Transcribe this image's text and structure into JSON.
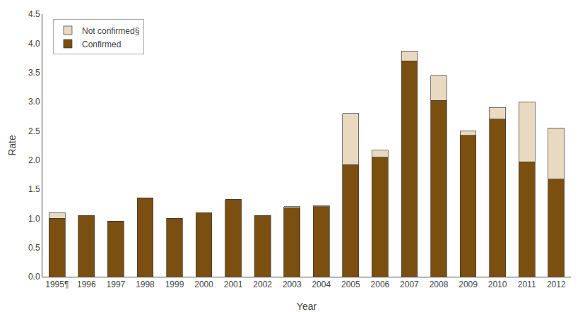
{
  "chart_data": {
    "type": "bar",
    "stacked": true,
    "xlabel": "Year",
    "ylabel": "Rate",
    "categories": [
      "1995¶",
      "1996",
      "1997",
      "1998",
      "1999",
      "2000",
      "2001",
      "2002",
      "2003",
      "2004",
      "2005",
      "2006",
      "2007",
      "2008",
      "2009",
      "2010",
      "2011",
      "2012"
    ],
    "series": [
      {
        "name": "Confirmed",
        "color": "#7B4F10",
        "values": [
          1.0,
          1.05,
          0.95,
          1.35,
          1.0,
          1.1,
          1.32,
          1.05,
          1.18,
          1.2,
          1.92,
          2.05,
          3.7,
          3.02,
          2.42,
          2.7,
          1.97,
          1.67
        ]
      },
      {
        "name": "Not confirmed§",
        "color": "#E8D9C0",
        "values": [
          0.1,
          0.0,
          0.0,
          0.0,
          0.0,
          0.0,
          0.0,
          0.0,
          0.02,
          0.02,
          0.88,
          0.12,
          0.17,
          0.43,
          0.08,
          0.2,
          1.03,
          0.88
        ]
      }
    ],
    "ylim": [
      0,
      4.5
    ],
    "yticks": [
      {
        "value": 0.0,
        "label": "0.0"
      },
      0.5,
      {
        "value": 1.0,
        "label": "1.0"
      },
      1.5,
      {
        "value": 2.0,
        "label": "2.0"
      },
      2.5,
      {
        "value": 3.0,
        "label": "3.0"
      },
      3.5,
      {
        "value": 4.0,
        "label": "4.0"
      },
      4.5
    ],
    "grid": false,
    "legend": "upper left"
  }
}
